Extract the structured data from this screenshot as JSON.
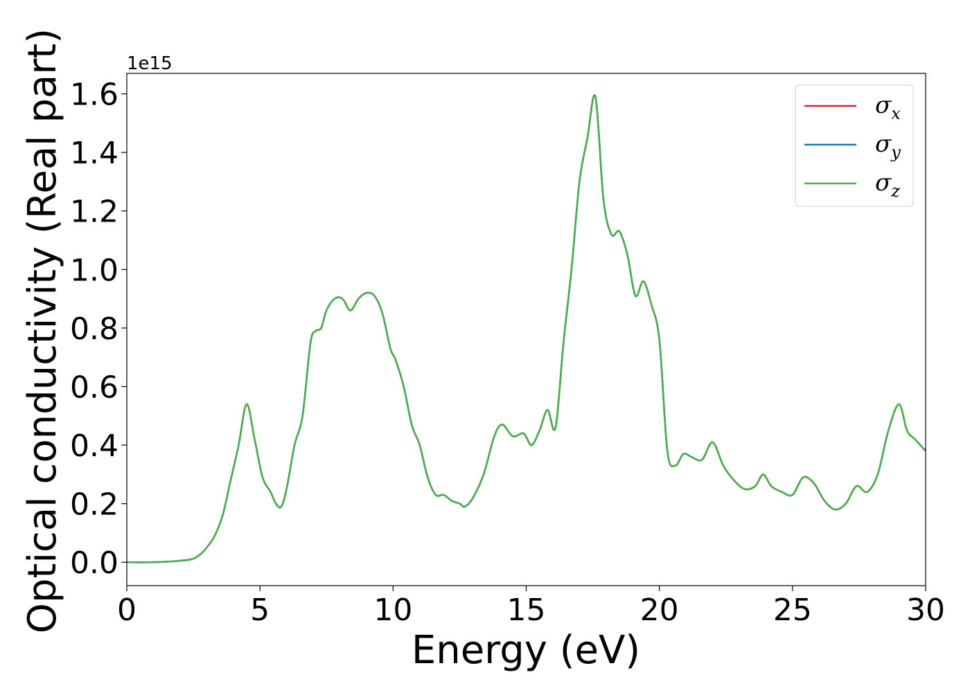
{
  "chart_data": {
    "type": "line",
    "xlabel": "Energy (eV)",
    "ylabel": "Optical conductivity (Real part)",
    "y_offset_text": "1e15",
    "xlim": [
      0,
      30
    ],
    "ylim": [
      -0.08,
      1.67
    ],
    "y_scale_factor": 1000000000000000.0,
    "x_ticks": [
      0,
      5,
      10,
      15,
      20,
      25,
      30
    ],
    "x_tick_labels": [
      "0",
      "5",
      "10",
      "15",
      "20",
      "25",
      "30"
    ],
    "y_ticks": [
      0.0,
      0.2,
      0.4,
      0.6,
      0.8,
      1.0,
      1.2,
      1.4,
      1.6
    ],
    "y_tick_labels": [
      "0.0",
      "0.2",
      "0.4",
      "0.6",
      "0.8",
      "1.0",
      "1.2",
      "1.4",
      "1.6"
    ],
    "grid": false,
    "legend_position": "top-right",
    "x": [
      0,
      1,
      2,
      2.5,
      2.8,
      3.0,
      3.3,
      3.6,
      3.9,
      4.2,
      4.5,
      4.8,
      5.1,
      5.4,
      5.6,
      5.8,
      6.0,
      6.3,
      6.6,
      6.9,
      7.1,
      7.3,
      7.5,
      7.8,
      8.1,
      8.4,
      8.7,
      9.0,
      9.3,
      9.6,
      9.9,
      10.1,
      10.4,
      10.7,
      11.0,
      11.3,
      11.6,
      11.9,
      12.2,
      12.5,
      12.7,
      13.0,
      13.4,
      13.8,
      14.1,
      14.5,
      14.9,
      15.2,
      15.5,
      15.8,
      16.1,
      16.4,
      16.7,
      17.0,
      17.3,
      17.6,
      17.9,
      18.2,
      18.5,
      18.8,
      19.1,
      19.4,
      19.7,
      20.0,
      20.3,
      20.6,
      20.9,
      21.2,
      21.6,
      22.0,
      22.4,
      22.8,
      23.2,
      23.6,
      23.9,
      24.2,
      24.6,
      25.0,
      25.4,
      25.8,
      26.2,
      26.6,
      27.0,
      27.4,
      27.8,
      28.2,
      28.6,
      29.0,
      29.3,
      29.6,
      30.0
    ],
    "series": [
      {
        "name": "σx",
        "color": "#d62728",
        "values": [
          0,
          0,
          0.005,
          0.012,
          0.03,
          0.05,
          0.09,
          0.16,
          0.28,
          0.4,
          0.54,
          0.42,
          0.29,
          0.24,
          0.2,
          0.19,
          0.25,
          0.4,
          0.5,
          0.75,
          0.79,
          0.8,
          0.86,
          0.9,
          0.9,
          0.86,
          0.9,
          0.92,
          0.91,
          0.85,
          0.73,
          0.69,
          0.6,
          0.47,
          0.4,
          0.29,
          0.23,
          0.23,
          0.21,
          0.2,
          0.19,
          0.22,
          0.3,
          0.43,
          0.47,
          0.43,
          0.44,
          0.4,
          0.45,
          0.52,
          0.46,
          0.75,
          1.0,
          1.3,
          1.45,
          1.59,
          1.24,
          1.12,
          1.13,
          1.05,
          0.91,
          0.96,
          0.88,
          0.76,
          0.38,
          0.33,
          0.37,
          0.36,
          0.35,
          0.41,
          0.33,
          0.28,
          0.25,
          0.26,
          0.3,
          0.26,
          0.24,
          0.23,
          0.29,
          0.27,
          0.21,
          0.18,
          0.2,
          0.26,
          0.24,
          0.3,
          0.45,
          0.54,
          0.45,
          0.42,
          0.38
        ]
      },
      {
        "name": "σy",
        "color": "#1f77b4",
        "values": [
          0,
          0,
          0.005,
          0.012,
          0.03,
          0.05,
          0.09,
          0.16,
          0.28,
          0.4,
          0.54,
          0.42,
          0.29,
          0.24,
          0.2,
          0.19,
          0.25,
          0.4,
          0.5,
          0.75,
          0.79,
          0.8,
          0.86,
          0.9,
          0.9,
          0.86,
          0.9,
          0.92,
          0.91,
          0.85,
          0.73,
          0.69,
          0.6,
          0.47,
          0.4,
          0.29,
          0.23,
          0.23,
          0.21,
          0.2,
          0.19,
          0.22,
          0.3,
          0.43,
          0.47,
          0.43,
          0.44,
          0.4,
          0.45,
          0.52,
          0.46,
          0.75,
          1.0,
          1.3,
          1.45,
          1.59,
          1.24,
          1.12,
          1.13,
          1.05,
          0.91,
          0.96,
          0.88,
          0.76,
          0.38,
          0.33,
          0.37,
          0.36,
          0.35,
          0.41,
          0.33,
          0.28,
          0.25,
          0.26,
          0.3,
          0.26,
          0.24,
          0.23,
          0.29,
          0.27,
          0.21,
          0.18,
          0.2,
          0.26,
          0.24,
          0.3,
          0.45,
          0.54,
          0.45,
          0.42,
          0.38
        ]
      },
      {
        "name": "σz",
        "color": "#4daf4a",
        "values": [
          0,
          0,
          0.005,
          0.012,
          0.03,
          0.05,
          0.09,
          0.16,
          0.28,
          0.4,
          0.54,
          0.42,
          0.29,
          0.24,
          0.2,
          0.19,
          0.25,
          0.4,
          0.5,
          0.75,
          0.79,
          0.8,
          0.86,
          0.9,
          0.9,
          0.86,
          0.9,
          0.92,
          0.91,
          0.85,
          0.73,
          0.69,
          0.6,
          0.47,
          0.4,
          0.29,
          0.23,
          0.23,
          0.21,
          0.2,
          0.19,
          0.22,
          0.3,
          0.43,
          0.47,
          0.43,
          0.44,
          0.4,
          0.45,
          0.52,
          0.46,
          0.75,
          1.0,
          1.3,
          1.45,
          1.59,
          1.24,
          1.12,
          1.13,
          1.05,
          0.91,
          0.96,
          0.88,
          0.76,
          0.38,
          0.33,
          0.37,
          0.36,
          0.35,
          0.41,
          0.33,
          0.28,
          0.25,
          0.26,
          0.3,
          0.26,
          0.24,
          0.23,
          0.29,
          0.27,
          0.21,
          0.18,
          0.2,
          0.26,
          0.24,
          0.3,
          0.45,
          0.54,
          0.45,
          0.42,
          0.38
        ]
      }
    ],
    "legend": [
      {
        "symbol": "σ",
        "sub": "x",
        "color": "#d62728"
      },
      {
        "symbol": "σ",
        "sub": "y",
        "color": "#1f77b4"
      },
      {
        "symbol": "σ",
        "sub": "z",
        "color": "#4daf4a"
      }
    ]
  }
}
